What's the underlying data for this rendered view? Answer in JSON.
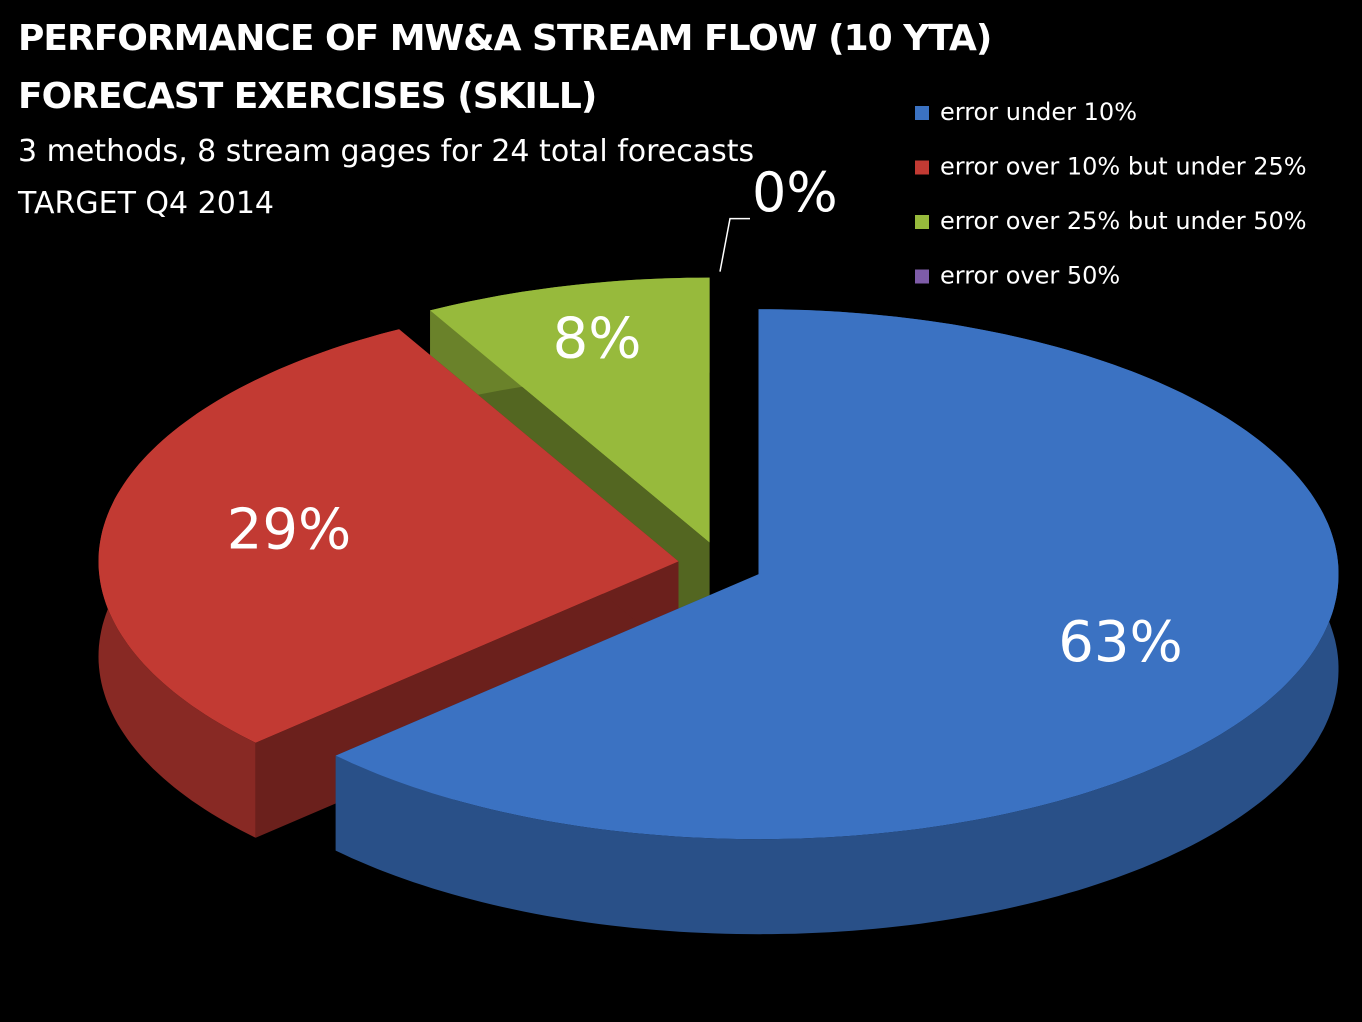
{
  "chart_data": {
    "type": "pie3d",
    "title": "PERFORMANCE OF MW&A STREAM FLOW (10 YTA) FORECAST EXERCISES (SKILL)",
    "subtitles": [
      "3 methods, 8 stream gages for 24 total forecasts",
      "TARGET  Q4 2014"
    ],
    "categories": [
      "error under 10%",
      "error over 10% but under 25%",
      "error over 25% but under 50%",
      "error over 50%"
    ],
    "values": [
      63,
      29,
      8,
      0
    ],
    "value_labels": [
      "63%",
      "29%",
      "8%",
      "0%"
    ],
    "colors": [
      "#3b72c2",
      "#c23a33",
      "#97ba3c",
      "#7e5ca8"
    ],
    "legend": "top-right"
  }
}
